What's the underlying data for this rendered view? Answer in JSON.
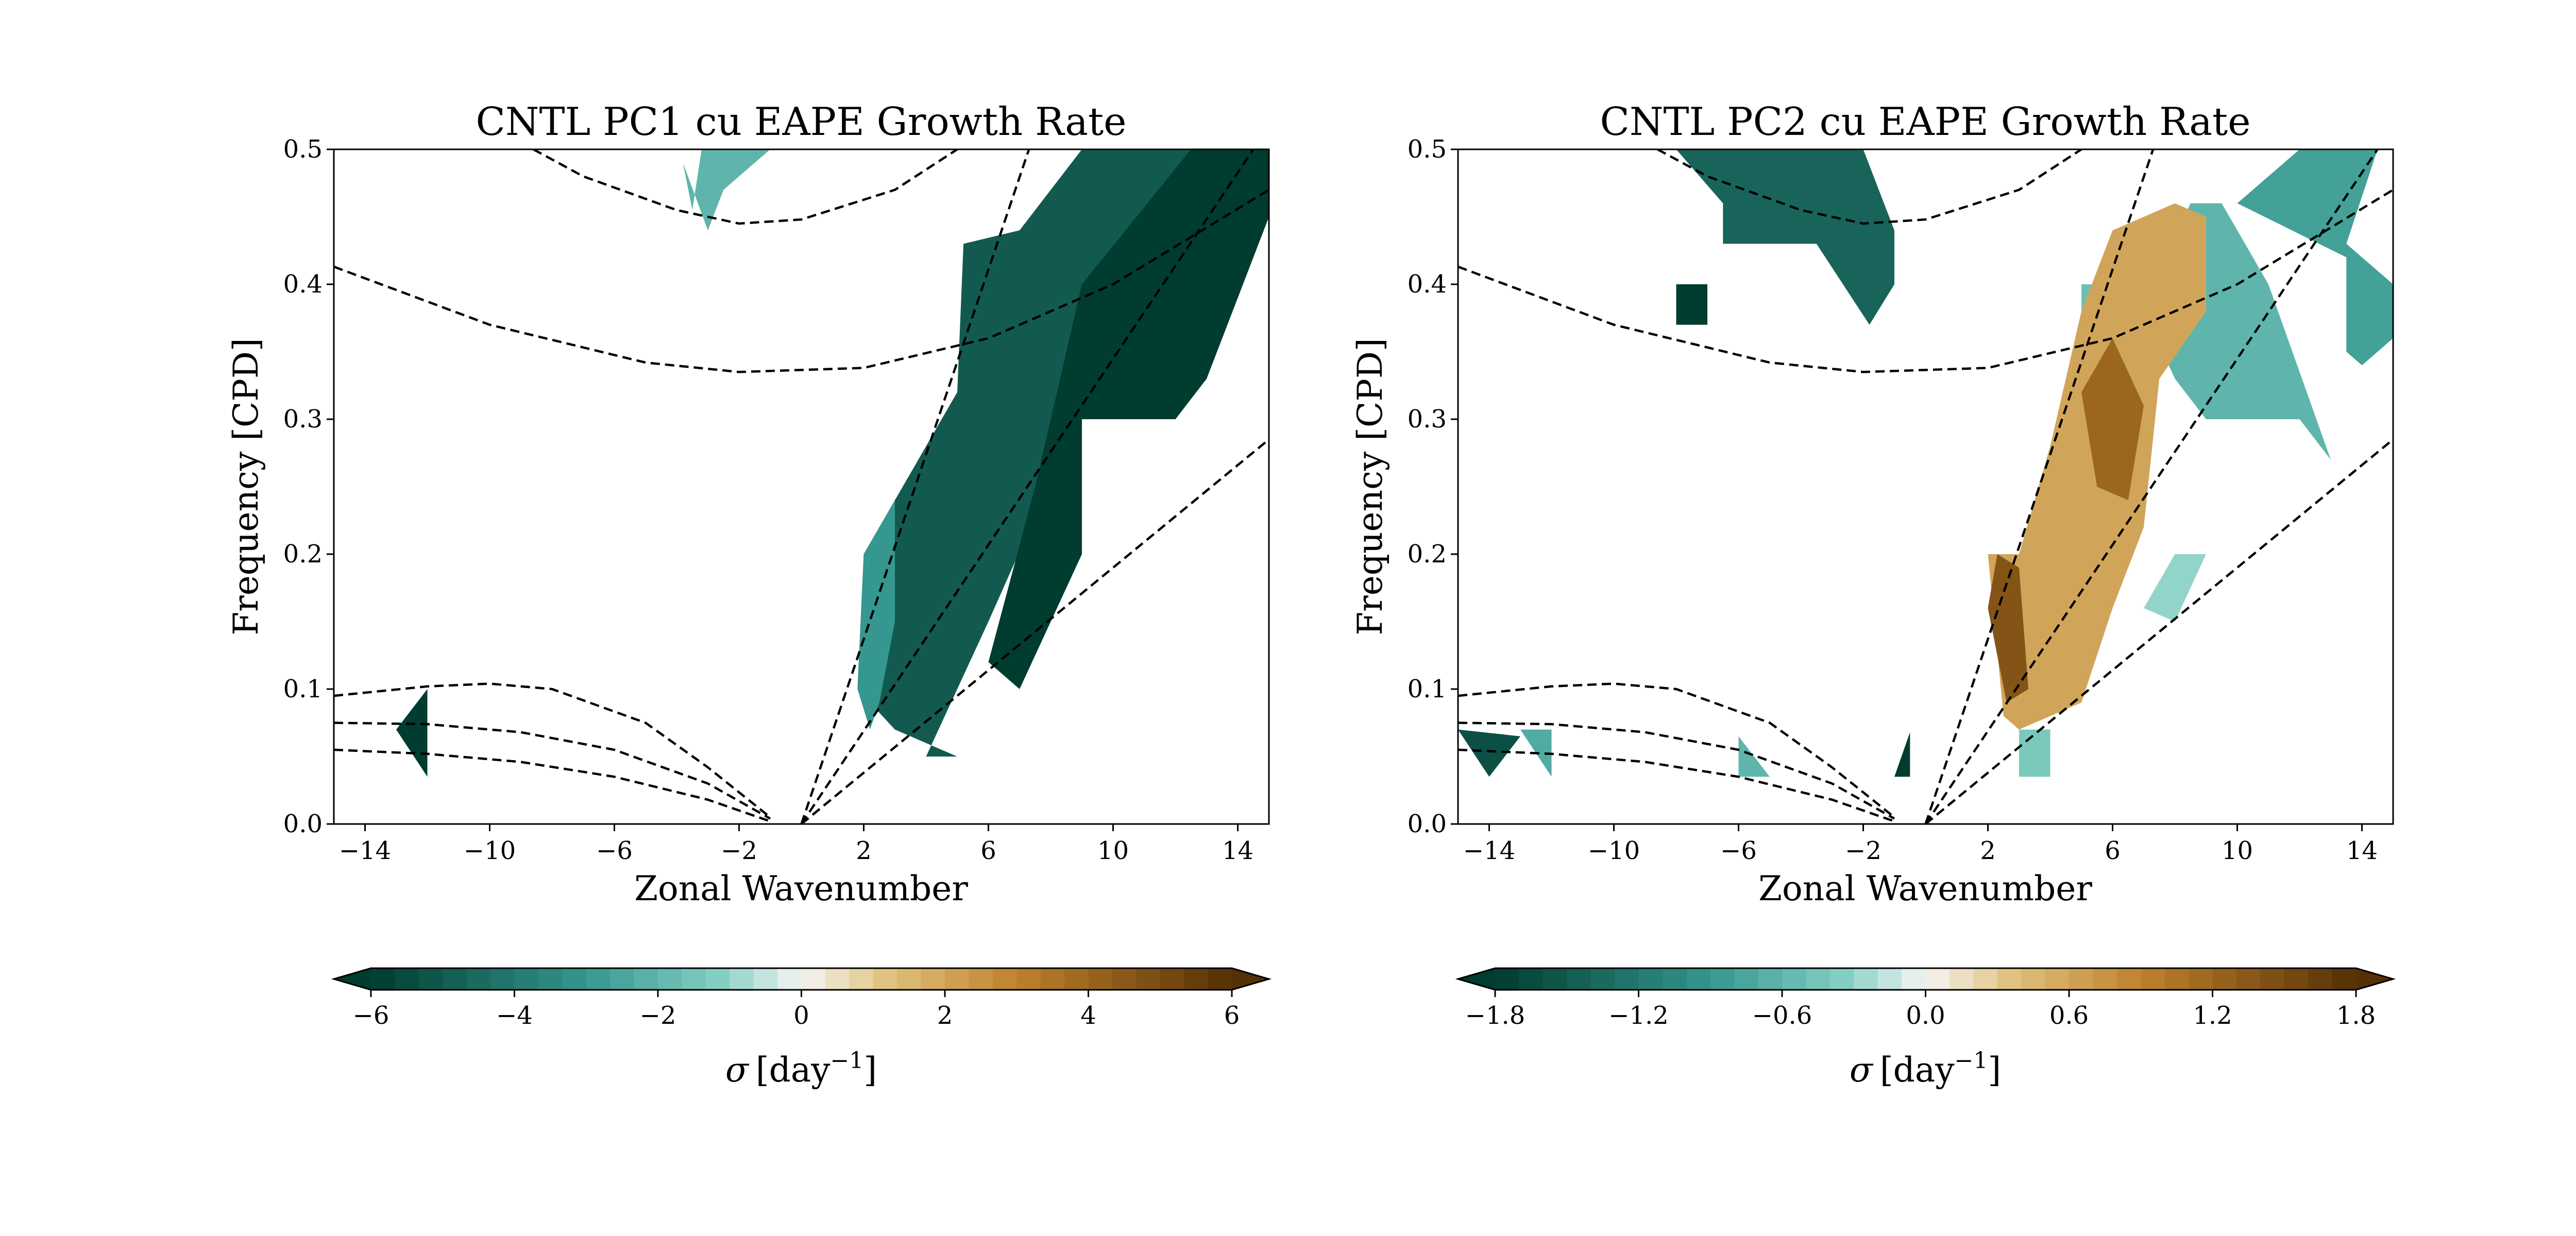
{
  "colors": {
    "negative_strong": "#003c30",
    "negative_mid": "#35978f",
    "negative_light": "#80cdc1",
    "neutral": "#f5f5f5",
    "positive_light": "#dfc27d",
    "positive_mid": "#bf812d",
    "positive_strong": "#543005",
    "dispersion_curves": "#000000"
  },
  "colormap": "BrBG",
  "curve_style": "dashed black",
  "chart_data": [
    {
      "type": "contour",
      "title": "CNTL PC1 cu EAPE Growth Rate",
      "xlabel": "Zonal Wavenumber",
      "ylabel": "Frequency [CPD]",
      "xlim": [
        -15,
        15
      ],
      "ylim": [
        0,
        0.5
      ],
      "xticks": [
        "−14",
        "−10",
        "−6",
        "−2",
        "2",
        "6",
        "10",
        "14"
      ],
      "yticks": [
        "0.0",
        "0.1",
        "0.2",
        "0.3",
        "0.4",
        "0.5"
      ],
      "colorbar": {
        "label_symbol": "σ",
        "label_units": "[day",
        "label_exp": "−1",
        "label_close": "]",
        "range": [
          -6,
          6
        ],
        "ticks": [
          "−6",
          "−4",
          "−2",
          "0",
          "2",
          "4",
          "6"
        ],
        "extend": "both"
      },
      "regions": [
        {
          "sign": "negative",
          "value": -5.0,
          "points": [
            [
              5,
              0.05
            ],
            [
              3,
              0.07
            ],
            [
              1.8,
              0.1
            ],
            [
              2,
              0.2
            ],
            [
              5,
              0.32
            ],
            [
              5.2,
              0.43
            ],
            [
              7,
              0.44
            ],
            [
              9,
              0.5
            ],
            [
              15,
              0.5
            ],
            [
              15,
              0.45
            ],
            [
              13,
              0.33
            ],
            [
              12,
              0.3
            ],
            [
              9,
              0.3
            ],
            [
              8.5,
              0.28
            ],
            [
              6,
              0.15
            ],
            [
              4,
              0.05
            ]
          ]
        },
        {
          "sign": "negative",
          "value": -6.0,
          "points": [
            [
              7,
              0.1
            ],
            [
              9,
              0.2
            ],
            [
              9,
              0.3
            ],
            [
              12,
              0.3
            ],
            [
              13,
              0.33
            ],
            [
              15,
              0.45
            ],
            [
              15,
              0.5
            ],
            [
              12.5,
              0.5
            ],
            [
              9,
              0.4
            ],
            [
              7.5,
              0.25
            ],
            [
              6,
              0.12
            ]
          ]
        },
        {
          "sign": "negative",
          "value": -3.0,
          "points": [
            [
              1.8,
              0.1
            ],
            [
              2,
              0.2
            ],
            [
              3,
              0.24
            ],
            [
              3,
              0.15
            ],
            [
              2.5,
              0.09
            ],
            [
              2.2,
              0.07
            ]
          ]
        },
        {
          "sign": "negative",
          "value": -2.0,
          "points": [
            [
              -3.8,
              0.49
            ],
            [
              -3,
              0.44
            ],
            [
              -2.5,
              0.47
            ],
            [
              -1,
              0.5
            ],
            [
              -3.2,
              0.5
            ],
            [
              -3.5,
              0.455
            ]
          ]
        },
        {
          "sign": "negative",
          "value": -6.0,
          "points": [
            [
              -13,
              0.07
            ],
            [
              -12,
              0.1
            ],
            [
              -12,
              0.035
            ]
          ]
        }
      ],
      "curves": [
        {
          "name": "c1",
          "points": [
            [
              -8.6,
              0.5
            ],
            [
              -7,
              0.48
            ],
            [
              -4,
              0.455
            ],
            [
              -2,
              0.445
            ],
            [
              0,
              0.448
            ],
            [
              3,
              0.47
            ],
            [
              5,
              0.5
            ]
          ]
        },
        {
          "name": "c2",
          "points": [
            [
              -15,
              0.413
            ],
            [
              -10,
              0.37
            ],
            [
              -5,
              0.342
            ],
            [
              -2,
              0.335
            ],
            [
              2,
              0.338
            ],
            [
              6,
              0.36
            ],
            [
              10,
              0.4
            ],
            [
              15,
              0.47
            ]
          ]
        },
        {
          "name": "c3",
          "points": [
            [
              -15,
              0.095
            ],
            [
              -12,
              0.102
            ],
            [
              -10,
              0.104
            ],
            [
              -8,
              0.1
            ],
            [
              -5,
              0.075
            ],
            [
              -3,
              0.042
            ],
            [
              -1,
              0.005
            ]
          ]
        },
        {
          "name": "c4",
          "points": [
            [
              -15,
              0.075
            ],
            [
              -12,
              0.074
            ],
            [
              -9,
              0.068
            ],
            [
              -6,
              0.055
            ],
            [
              -3,
              0.03
            ],
            [
              -1,
              0.004
            ]
          ]
        },
        {
          "name": "c5",
          "points": [
            [
              -15,
              0.055
            ],
            [
              -12,
              0.052
            ],
            [
              -9,
              0.046
            ],
            [
              -6,
              0.035
            ],
            [
              -3,
              0.018
            ],
            [
              -1,
              0.002
            ]
          ]
        },
        {
          "name": "ray1",
          "points": [
            [
              0,
              0
            ],
            [
              7.3,
              0.5
            ]
          ]
        },
        {
          "name": "ray2",
          "points": [
            [
              0,
              0
            ],
            [
              14.5,
              0.5
            ]
          ]
        },
        {
          "name": "ray3",
          "points": [
            [
              0,
              0
            ],
            [
              15,
              0.285
            ]
          ]
        }
      ]
    },
    {
      "type": "contour",
      "title": "CNTL PC2 cu EAPE Growth Rate",
      "xlabel": "Zonal Wavenumber",
      "ylabel": "Frequency [CPD]",
      "xlim": [
        -15,
        15
      ],
      "ylim": [
        0,
        0.5
      ],
      "xticks": [
        "−14",
        "−10",
        "−6",
        "−2",
        "2",
        "6",
        "10",
        "14"
      ],
      "yticks": [
        "0.0",
        "0.1",
        "0.2",
        "0.3",
        "0.4",
        "0.5"
      ],
      "colorbar": {
        "label_symbol": "σ",
        "label_units": "[day",
        "label_exp": "−1",
        "label_close": "]",
        "range": [
          -1.8,
          1.8
        ],
        "ticks": [
          "−1.8",
          "−1.2",
          "−0.6",
          "0.0",
          "0.6",
          "1.2",
          "1.8"
        ],
        "extend": "both"
      },
      "regions": [
        {
          "sign": "negative",
          "value": -1.4,
          "points": [
            [
              -8,
              0.5
            ],
            [
              -6.5,
              0.46
            ],
            [
              -6.5,
              0.43
            ],
            [
              -3.5,
              0.43
            ],
            [
              -1.8,
              0.37
            ],
            [
              -1,
              0.4
            ],
            [
              -1,
              0.44
            ],
            [
              -2,
              0.5
            ]
          ]
        },
        {
          "sign": "negative",
          "value": -1.8,
          "points": [
            [
              -8,
              0.4
            ],
            [
              -7,
              0.4
            ],
            [
              -7,
              0.37
            ],
            [
              -8,
              0.37
            ]
          ]
        },
        {
          "sign": "negative",
          "value": -0.8,
          "points": [
            [
              10,
              0.46
            ],
            [
              12,
              0.5
            ],
            [
              14.5,
              0.5
            ],
            [
              13.5,
              0.43
            ],
            [
              15,
              0.4
            ],
            [
              15,
              0.36
            ],
            [
              14,
              0.34
            ],
            [
              13.5,
              0.35
            ],
            [
              13.5,
              0.42
            ]
          ]
        },
        {
          "sign": "negative",
          "value": -0.6,
          "points": [
            [
              7,
              0.38
            ],
            [
              8.5,
              0.46
            ],
            [
              9.5,
              0.46
            ],
            [
              11,
              0.4
            ],
            [
              13,
              0.27
            ],
            [
              12,
              0.3
            ],
            [
              10.5,
              0.3
            ],
            [
              9,
              0.3
            ],
            [
              8,
              0.33
            ]
          ]
        },
        {
          "sign": "negative",
          "value": -0.5,
          "points": [
            [
              5,
              0.38
            ],
            [
              5,
              0.4
            ],
            [
              6,
              0.4
            ],
            [
              6,
              0.36
            ]
          ]
        },
        {
          "sign": "positive",
          "value": 0.6,
          "points": [
            [
              2,
              0.2
            ],
            [
              3,
              0.2
            ],
            [
              4,
              0.28
            ],
            [
              5,
              0.38
            ],
            [
              6,
              0.44
            ],
            [
              8,
              0.46
            ],
            [
              9,
              0.45
            ],
            [
              9,
              0.38
            ],
            [
              7.5,
              0.33
            ],
            [
              7,
              0.22
            ],
            [
              6,
              0.16
            ],
            [
              5,
              0.09
            ],
            [
              3,
              0.07
            ],
            [
              2.5,
              0.08
            ]
          ]
        },
        {
          "sign": "positive",
          "value": 1.4,
          "points": [
            [
              2,
              0.16
            ],
            [
              2.3,
              0.2
            ],
            [
              3,
              0.19
            ],
            [
              3.3,
              0.1
            ],
            [
              2.6,
              0.09
            ]
          ]
        },
        {
          "sign": "positive",
          "value": 1.2,
          "points": [
            [
              5,
              0.32
            ],
            [
              6,
              0.36
            ],
            [
              7,
              0.31
            ],
            [
              6.5,
              0.24
            ],
            [
              5.5,
              0.25
            ]
          ]
        },
        {
          "sign": "negative",
          "value": -0.4,
          "points": [
            [
              3,
              0.07
            ],
            [
              3,
              0.035
            ],
            [
              4,
              0.035
            ],
            [
              4,
              0.07
            ]
          ]
        },
        {
          "sign": "negative",
          "value": -0.3,
          "points": [
            [
              7,
              0.16
            ],
            [
              8,
              0.2
            ],
            [
              9,
              0.2
            ],
            [
              8,
              0.15
            ]
          ]
        },
        {
          "sign": "negative",
          "value": -1.6,
          "points": [
            [
              -15,
              0.07
            ],
            [
              -14,
              0.035
            ],
            [
              -13,
              0.065
            ]
          ]
        },
        {
          "sign": "negative",
          "value": -0.7,
          "points": [
            [
              -13,
              0.07
            ],
            [
              -12,
              0.035
            ],
            [
              -12,
              0.07
            ]
          ]
        },
        {
          "sign": "negative",
          "value": -0.6,
          "points": [
            [
              -6,
              0.065
            ],
            [
              -5,
              0.035
            ],
            [
              -6,
              0.035
            ]
          ]
        },
        {
          "sign": "negative",
          "value": -1.8,
          "points": [
            [
              -1,
              0.035
            ],
            [
              -0.5,
              0.035
            ],
            [
              -0.5,
              0.068
            ]
          ]
        }
      ],
      "curves": [
        {
          "name": "c1",
          "points": [
            [
              -8.6,
              0.5
            ],
            [
              -7,
              0.48
            ],
            [
              -4,
              0.455
            ],
            [
              -2,
              0.445
            ],
            [
              0,
              0.448
            ],
            [
              3,
              0.47
            ],
            [
              5,
              0.5
            ]
          ]
        },
        {
          "name": "c2",
          "points": [
            [
              -15,
              0.413
            ],
            [
              -10,
              0.37
            ],
            [
              -5,
              0.342
            ],
            [
              -2,
              0.335
            ],
            [
              2,
              0.338
            ],
            [
              6,
              0.36
            ],
            [
              10,
              0.4
            ],
            [
              15,
              0.47
            ]
          ]
        },
        {
          "name": "c3",
          "points": [
            [
              -15,
              0.095
            ],
            [
              -12,
              0.102
            ],
            [
              -10,
              0.104
            ],
            [
              -8,
              0.1
            ],
            [
              -5,
              0.075
            ],
            [
              -3,
              0.042
            ],
            [
              -1,
              0.005
            ]
          ]
        },
        {
          "name": "c4",
          "points": [
            [
              -15,
              0.075
            ],
            [
              -12,
              0.074
            ],
            [
              -9,
              0.068
            ],
            [
              -6,
              0.055
            ],
            [
              -3,
              0.03
            ],
            [
              -1,
              0.004
            ]
          ]
        },
        {
          "name": "c5",
          "points": [
            [
              -15,
              0.055
            ],
            [
              -12,
              0.052
            ],
            [
              -9,
              0.046
            ],
            [
              -6,
              0.035
            ],
            [
              -3,
              0.018
            ],
            [
              -1,
              0.002
            ]
          ]
        },
        {
          "name": "ray1",
          "points": [
            [
              0,
              0
            ],
            [
              7.3,
              0.5
            ]
          ]
        },
        {
          "name": "ray2",
          "points": [
            [
              0,
              0
            ],
            [
              14.5,
              0.5
            ]
          ]
        },
        {
          "name": "ray3",
          "points": [
            [
              0,
              0
            ],
            [
              15,
              0.285
            ]
          ]
        }
      ]
    }
  ]
}
